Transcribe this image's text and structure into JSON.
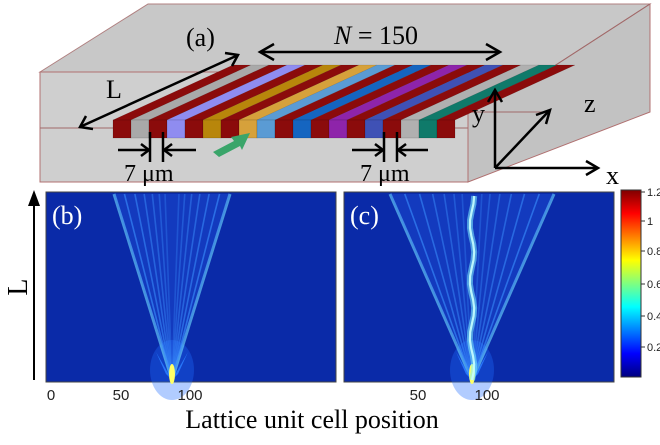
{
  "panel_a": {
    "label": "(a)",
    "n_label_prefix": "N",
    "n_label_suffix": " = 150",
    "length_label": "L",
    "gap_left": "7 μm",
    "gap_right": "7 μm",
    "axis_x": "x",
    "axis_y": "y",
    "axis_z": "z",
    "stripe_colors": [
      "#8b0b0b",
      "#a9a9a9",
      "#8b0b0b",
      "#8f8cf0",
      "#8b0b0b",
      "#b8860b",
      "#8b0b0b",
      "#d6a13b",
      "#5a9bd4",
      "#8b0b0b",
      "#1565c0",
      "#8b0b0b",
      "#8e24aa",
      "#8b0b0b",
      "#3f51b5",
      "#8b0b0b",
      "#b0b0b0",
      "#0f7a6a",
      "#8b0b0b"
    ],
    "input_arrow_color": "#3aa56a"
  },
  "panel_b": {
    "label": "(b)",
    "x_ticks": [
      "0",
      "50",
      "100"
    ],
    "defect_guide": false
  },
  "panel_c": {
    "label": "(c)",
    "x_ticks": [
      "50",
      "100"
    ],
    "defect_guide": true
  },
  "y_axis_label": "L",
  "x_axis_label": "Lattice unit cell position",
  "colorbar": {
    "ticks": [
      "1.2",
      "1",
      "0.8",
      "0.6",
      "0.4",
      "0.2"
    ],
    "colors": [
      "#00007f",
      "#0000ff",
      "#007fff",
      "#00ffff",
      "#7fff7f",
      "#ffff00",
      "#ff7f00",
      "#ff0000",
      "#7f0000"
    ]
  }
}
